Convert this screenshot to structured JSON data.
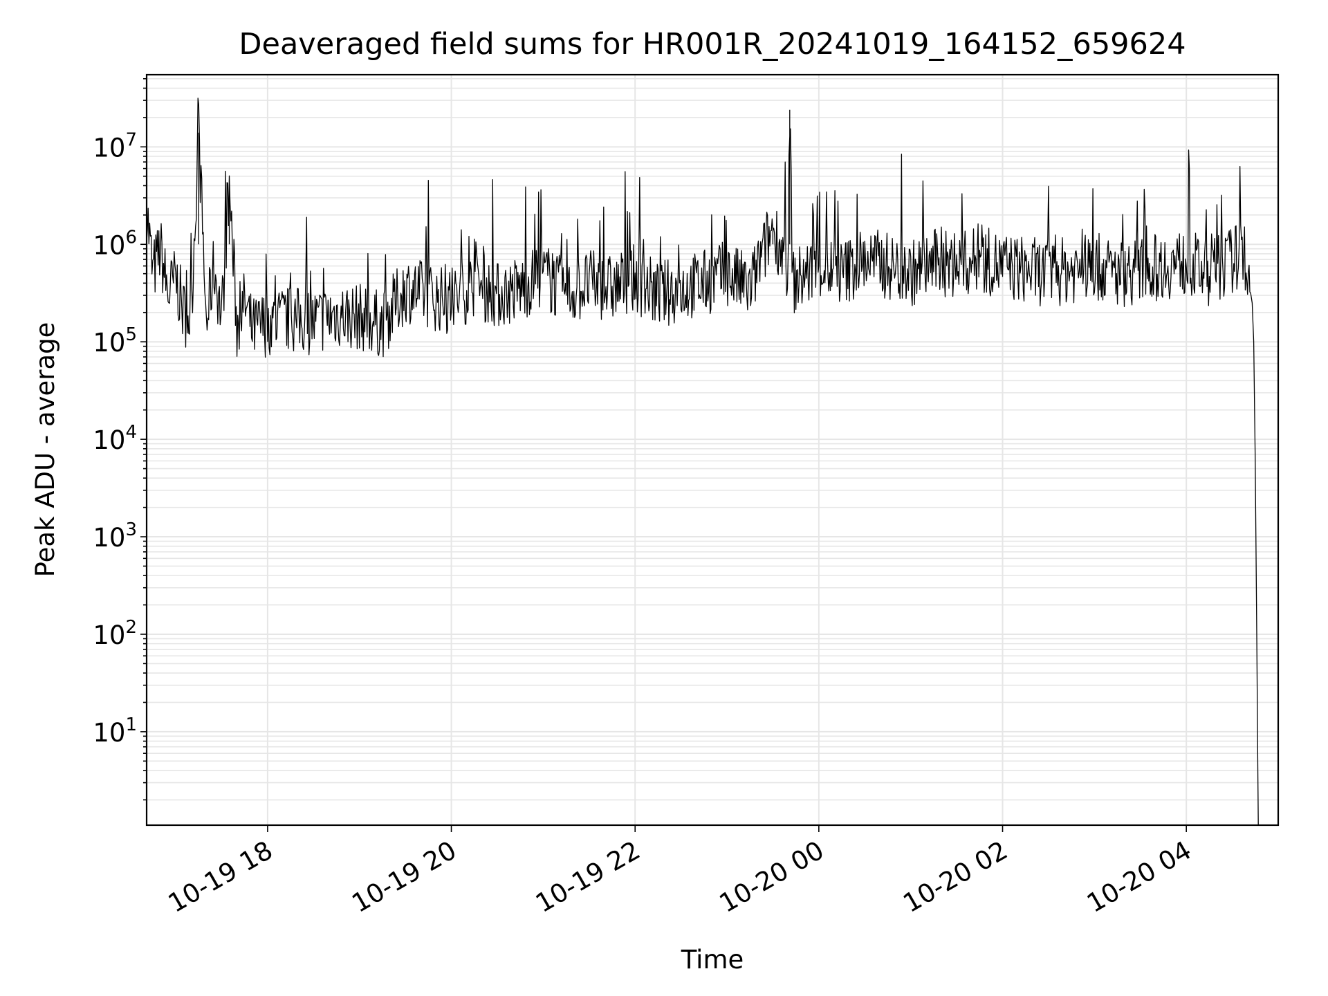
{
  "chart_data": {
    "type": "line",
    "title": "Deaveraged field sums for HR001R_20241019_164152_659624",
    "xlabel": "Time",
    "ylabel": "Peak ADU - average",
    "yscale": "log",
    "ylim": [
      1.1,
      55000000
    ],
    "xlim": [
      "2024-10-19 16:41",
      "2024-10-20 05:00"
    ],
    "x_tick_labels": [
      "10-19 18",
      "10-19 20",
      "10-19 22",
      "10-20 00",
      "10-20 02",
      "10-20 04"
    ],
    "x_ticks": [
      "2024-10-19 18:00",
      "2024-10-19 20:00",
      "2024-10-19 22:00",
      "2024-10-20 00:00",
      "2024-10-20 02:00",
      "2024-10-20 04:00"
    ],
    "y_ticks": [
      10,
      100,
      1000,
      10000,
      100000,
      1000000,
      10000000
    ],
    "grid": true,
    "grid_color": "#e6e6e6",
    "line_color": "#000000",
    "series": [
      {
        "x": [
          "2024-10-19 16:41",
          "2024-10-19 16:45",
          "2024-10-19 16:50",
          "2024-10-19 16:55",
          "2024-10-19 17:00",
          "2024-10-19 17:05",
          "2024-10-19 17:10",
          "2024-10-19 17:15",
          "2024-10-19 17:20",
          "2024-10-19 17:25",
          "2024-10-19 17:30",
          "2024-10-19 17:35",
          "2024-10-19 17:40",
          "2024-10-19 17:45",
          "2024-10-19 17:50",
          "2024-10-19 18:00",
          "2024-10-19 18:15",
          "2024-10-19 18:30",
          "2024-10-19 18:45",
          "2024-10-19 19:00",
          "2024-10-19 19:15",
          "2024-10-19 19:30",
          "2024-10-19 19:45",
          "2024-10-19 20:00",
          "2024-10-19 20:15",
          "2024-10-19 20:30",
          "2024-10-19 20:45",
          "2024-10-19 21:00",
          "2024-10-19 21:15",
          "2024-10-19 21:30",
          "2024-10-19 21:45",
          "2024-10-19 22:00",
          "2024-10-19 22:15",
          "2024-10-19 22:30",
          "2024-10-19 22:45",
          "2024-10-19 23:00",
          "2024-10-19 23:15",
          "2024-10-19 23:30",
          "2024-10-19 23:40",
          "2024-10-19 23:41",
          "2024-10-19 23:43",
          "2024-10-20 00:00",
          "2024-10-20 00:15",
          "2024-10-20 00:30",
          "2024-10-20 00:45",
          "2024-10-20 01:00",
          "2024-10-20 01:15",
          "2024-10-20 01:30",
          "2024-10-20 01:45",
          "2024-10-20 02:00",
          "2024-10-20 02:15",
          "2024-10-20 02:30",
          "2024-10-20 02:45",
          "2024-10-20 03:00",
          "2024-10-20 03:15",
          "2024-10-20 03:30",
          "2024-10-20 03:45",
          "2024-10-20 04:00",
          "2024-10-20 04:15",
          "2024-10-20 04:30",
          "2024-10-20 04:37",
          "2024-10-20 04:40",
          "2024-10-20 04:43",
          "2024-10-20 04:44",
          "2024-10-20 04:45",
          "2024-10-20 04:46",
          "2024-10-20 04:47"
        ],
        "y": [
          2400000,
          500000,
          900000,
          300000,
          450000,
          200000,
          180000,
          14000000,
          150000,
          600000,
          180000,
          3800000,
          140000,
          250000,
          130000,
          160000,
          170000,
          160000,
          190000,
          180000,
          150000,
          350000,
          300000,
          250000,
          400000,
          300000,
          350000,
          500000,
          300000,
          400000,
          350000,
          450000,
          300000,
          350000,
          400000,
          500000,
          350000,
          1500000,
          600000,
          24000000,
          400000,
          600000,
          500000,
          700000,
          600000,
          500000,
          650000,
          600000,
          700000,
          600000,
          550000,
          500000,
          550000,
          600000,
          500000,
          550000,
          600000,
          650000,
          500000,
          700000,
          800000,
          500000,
          250000,
          100000,
          6000,
          100,
          1.1
        ]
      }
    ]
  }
}
